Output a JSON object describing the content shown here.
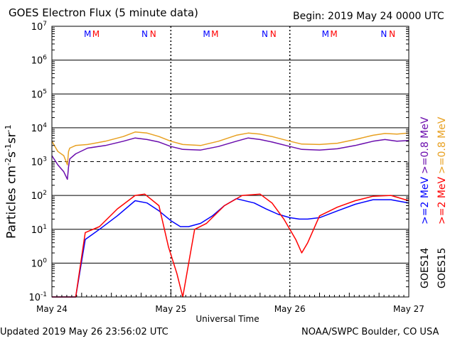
{
  "header": {
    "title": "GOES Electron Flux (5 minute data)",
    "begin": "Begin: 2019 May 24 0000 UTC"
  },
  "footer": {
    "updated": "Updated 2019 May 26 23:56:02 UTC",
    "credit": "NOAA/SWPC Boulder, CO USA"
  },
  "chart_data": {
    "type": "line",
    "title": "GOES Electron Flux (5 minute data)",
    "xlabel": "Universal Time",
    "ylabel": "Particles cm-2s-1sr-1",
    "y_scale": "log",
    "ylim": [
      0.1,
      10000000
    ],
    "xlim_days": [
      "May 24",
      "May 27"
    ],
    "x_ticks": [
      "May 24",
      "May 25",
      "May 26",
      "May 27"
    ],
    "y_ticks": [
      {
        "base": "10",
        "exp": "7"
      },
      {
        "base": "10",
        "exp": "6"
      },
      {
        "base": "10",
        "exp": "5"
      },
      {
        "base": "10",
        "exp": "4"
      },
      {
        "base": "10",
        "exp": "3"
      },
      {
        "base": "10",
        "exp": "2"
      },
      {
        "base": "10",
        "exp": "1"
      },
      {
        "base": "10",
        "exp": "0"
      },
      {
        "base": "10",
        "exp": "-1"
      }
    ],
    "grid": true,
    "dashed_level": 1000,
    "markers": [
      {
        "label": "M",
        "color": "#0000ff",
        "day": 0.3
      },
      {
        "label": "M",
        "color": "#ff0000",
        "day": 0.37
      },
      {
        "label": "N",
        "color": "#0000ff",
        "day": 0.78
      },
      {
        "label": "N",
        "color": "#ff0000",
        "day": 0.85
      },
      {
        "label": "M",
        "color": "#0000ff",
        "day": 1.3
      },
      {
        "label": "M",
        "color": "#ff0000",
        "day": 1.37
      },
      {
        "label": "N",
        "color": "#0000ff",
        "day": 1.79
      },
      {
        "label": "N",
        "color": "#ff0000",
        "day": 1.86
      },
      {
        "label": "M",
        "color": "#0000ff",
        "day": 2.3
      },
      {
        "label": "M",
        "color": "#ff0000",
        "day": 2.37
      },
      {
        "label": "N",
        "color": "#0000ff",
        "day": 2.79
      },
      {
        "label": "N",
        "color": "#ff0000",
        "day": 2.86
      }
    ],
    "series": [
      {
        "name": "GOES14 >=0.8 MeV",
        "color": "#6a0dad",
        "x": [
          0.0,
          0.05,
          0.1,
          0.13,
          0.14,
          0.15,
          0.2,
          0.3,
          0.45,
          0.6,
          0.7,
          0.8,
          0.9,
          1.0,
          1.1,
          1.25,
          1.4,
          1.55,
          1.65,
          1.75,
          1.85,
          2.0,
          2.1,
          2.25,
          2.4,
          2.55,
          2.7,
          2.8,
          2.9,
          3.0
        ],
        "y": [
          1500,
          800,
          500,
          300,
          700,
          1200,
          1700,
          2500,
          3000,
          4000,
          5000,
          4500,
          3800,
          2800,
          2300,
          2200,
          2800,
          4000,
          5000,
          4500,
          3800,
          2800,
          2300,
          2200,
          2400,
          3000,
          4000,
          4500,
          4000,
          4200
        ]
      },
      {
        "name": "GOES15 >=0.8 MeV",
        "color": "#e8a020",
        "x": [
          0.0,
          0.05,
          0.1,
          0.13,
          0.14,
          0.15,
          0.2,
          0.3,
          0.45,
          0.6,
          0.7,
          0.8,
          0.9,
          1.0,
          1.1,
          1.25,
          1.4,
          1.55,
          1.65,
          1.75,
          1.85,
          2.0,
          2.1,
          2.25,
          2.4,
          2.55,
          2.7,
          2.8,
          2.9,
          3.0
        ],
        "y": [
          4000,
          2000,
          1500,
          800,
          2000,
          2500,
          3000,
          3200,
          4000,
          5500,
          7500,
          7000,
          5500,
          4000,
          3200,
          3000,
          4000,
          6000,
          7000,
          6500,
          5500,
          4000,
          3300,
          3200,
          3500,
          4500,
          6000,
          6800,
          6500,
          7000
        ]
      },
      {
        "name": "GOES14 >=2 MeV",
        "color": "#0000ff",
        "x": [
          0.0,
          0.1,
          0.2,
          0.28,
          0.4,
          0.55,
          0.7,
          0.8,
          0.9,
          1.0,
          1.08,
          1.15,
          1.25,
          1.35,
          1.45,
          1.55,
          1.7,
          1.8,
          1.9,
          2.0,
          2.08,
          2.15,
          2.25,
          2.4,
          2.55,
          2.7,
          2.85,
          3.0
        ],
        "y": [
          0.1,
          0.1,
          0.1,
          5,
          10,
          25,
          70,
          60,
          35,
          18,
          12,
          12,
          15,
          25,
          50,
          80,
          60,
          40,
          28,
          22,
          20,
          20,
          22,
          35,
          55,
          75,
          75,
          60
        ]
      },
      {
        "name": "GOES15 >=2 MeV",
        "color": "#ff0000",
        "x": [
          0.0,
          0.1,
          0.2,
          0.28,
          0.4,
          0.55,
          0.7,
          0.78,
          0.9,
          0.98,
          1.05,
          1.1,
          1.15,
          1.2,
          1.3,
          1.45,
          1.6,
          1.75,
          1.85,
          1.95,
          2.05,
          2.1,
          2.15,
          2.25,
          2.4,
          2.55,
          2.7,
          2.85,
          3.0
        ],
        "y": [
          0.1,
          0.1,
          0.1,
          8,
          12,
          40,
          100,
          110,
          50,
          3,
          0.5,
          0.1,
          1,
          10,
          15,
          50,
          100,
          110,
          60,
          20,
          5,
          2,
          4,
          25,
          45,
          70,
          95,
          100,
          70
        ]
      }
    ],
    "legend": {
      "position": "right",
      "col_left": [
        {
          "text": ">=0.8 MeV",
          "color": "#6a0dad"
        },
        {
          "text": ">=2 MeV",
          "color": "#0000ff"
        },
        {
          "text": "GOES14",
          "color": "#000000"
        }
      ],
      "col_right": [
        {
          "text": ">=0.8 MeV",
          "color": "#e8a020"
        },
        {
          "text": ">=2 MeV",
          "color": "#ff0000"
        },
        {
          "text": "GOES15",
          "color": "#000000"
        }
      ]
    }
  }
}
